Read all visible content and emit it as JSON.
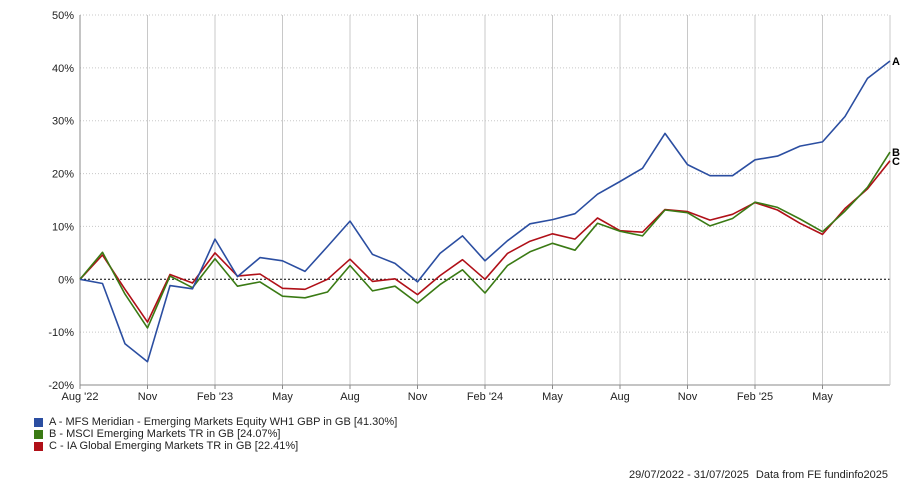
{
  "chart_data": {
    "type": "line",
    "ylim": [
      -20,
      50
    ],
    "y_ticks": [
      50,
      40,
      30,
      20,
      10,
      0,
      -10,
      -20
    ],
    "y_tick_labels": [
      "50%",
      "40%",
      "30%",
      "20%",
      "10%",
      "0%",
      "-10%",
      "-20%"
    ],
    "x_tick_labels": [
      "Aug '22",
      "Nov",
      "Feb '23",
      "May",
      "Aug",
      "Nov",
      "Feb '24",
      "May",
      "Aug",
      "Nov",
      "Feb '25",
      "May"
    ],
    "x_tick_index": [
      0,
      3,
      6,
      9,
      12,
      15,
      18,
      21,
      24,
      27,
      30,
      33
    ],
    "grid": true,
    "zero_line": "dotted",
    "legend_position": "bottom-left",
    "series": [
      {
        "name": "A - MFS Meridian - Emerging Markets Equity WH1 GBP in GB [41.30%]",
        "end_label": "A",
        "color": "#2b4ea1",
        "values": [
          0,
          -0.8,
          -12.2,
          -15.6,
          -1.2,
          -1.8,
          7.6,
          0.5,
          4.1,
          3.5,
          1.5,
          6.2,
          11.0,
          4.7,
          3.0,
          -0.5,
          4.9,
          8.2,
          3.5,
          7.3,
          10.5,
          11.3,
          12.4,
          16.1,
          18.5,
          21.0,
          27.6,
          21.7,
          19.6,
          19.6,
          22.6,
          23.3,
          25.2,
          26.0,
          30.8,
          38.0,
          41.3
        ]
      },
      {
        "name": "B - MSCI Emerging Markets TR in GB [24.07%]",
        "end_label": "B",
        "color": "#3a7a14",
        "values": [
          0,
          5.1,
          -2.8,
          -9.2,
          0.6,
          -1.6,
          3.9,
          -1.3,
          -0.5,
          -3.2,
          -3.5,
          -2.4,
          2.6,
          -2.2,
          -1.3,
          -4.5,
          -1.0,
          1.8,
          -2.6,
          2.6,
          5.2,
          6.8,
          5.5,
          10.6,
          9.1,
          8.2,
          13.1,
          12.6,
          10.1,
          11.5,
          14.6,
          13.6,
          11.4,
          9.0,
          12.9,
          17.4,
          24.07
        ]
      },
      {
        "name": "C - IA Global Emerging Markets TR in GB [22.41%]",
        "end_label": "C",
        "color": "#b01018",
        "values": [
          0,
          4.6,
          -1.9,
          -8.1,
          0.9,
          -0.7,
          5.0,
          0.6,
          1.0,
          -1.7,
          -1.9,
          0.0,
          3.8,
          -0.4,
          0.1,
          -2.9,
          0.7,
          3.7,
          0.0,
          4.9,
          7.2,
          8.6,
          7.6,
          11.6,
          9.2,
          8.9,
          13.2,
          12.8,
          11.2,
          12.3,
          14.5,
          13.1,
          10.6,
          8.5,
          13.4,
          17.1,
          22.41
        ]
      }
    ]
  },
  "footer": {
    "date_range": "29/07/2022 - 31/07/2025",
    "source": "Data from FE fundinfo2025"
  }
}
